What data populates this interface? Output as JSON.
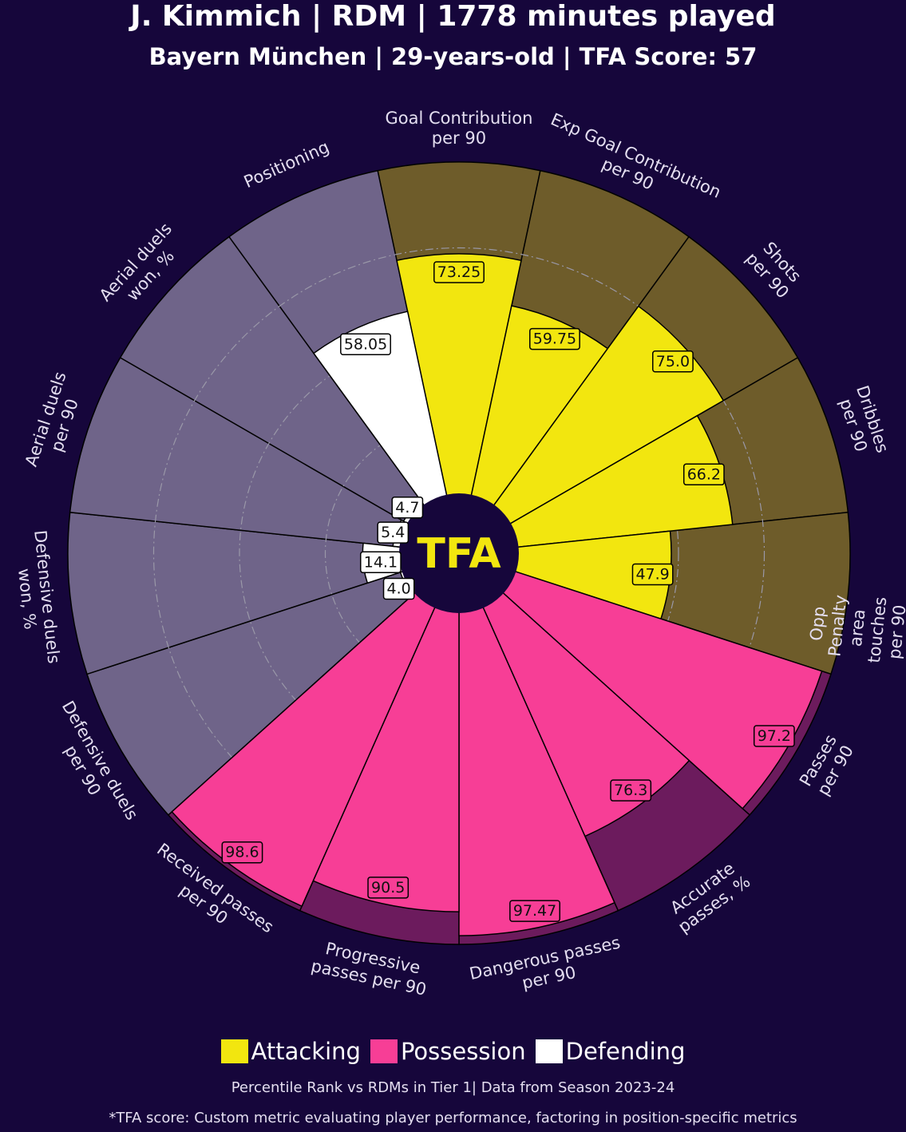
{
  "chart_data": {
    "type": "pizza",
    "title": "J. Kimmich | RDM | 1778 minutes played",
    "subtitle": "Bayern München | 29-years-old | TFA Score: 57",
    "center_label": "TFA",
    "categories": [
      "Goal Contribution\nper 90",
      "Exp Goal Contribution\nper 90",
      "Shots\nper 90",
      "Dribbles\nper 90",
      "Opp Penalty area\ntouches per 90",
      "Passes\nper 90",
      "Accurate\npasses, %",
      "Dangerous passes\nper 90",
      "Progressive\npasses per 90",
      "Received passes\nper 90",
      "Defensive duels\nper 90",
      "Defensive duels\nwon, %",
      "Aerial duels\nper 90",
      "Aerial duels\nwon, %",
      "Positioning"
    ],
    "series": [
      {
        "name": "Attacking",
        "color": "#f2e60f",
        "background": "#6e5c2a",
        "values": [
          73.25,
          59.75,
          75,
          66.2,
          47.9,
          null,
          null,
          null,
          null,
          null,
          null,
          null,
          null,
          null,
          null
        ],
        "value_labels": [
          "73.25",
          "59.75",
          "75.0",
          "66.2",
          "47.9",
          null,
          null,
          null,
          null,
          null,
          null,
          null,
          null,
          null,
          null
        ]
      },
      {
        "name": "Possession",
        "color": "#f73e96",
        "background": "#6c1b5d",
        "values": [
          null,
          null,
          null,
          null,
          null,
          97.2,
          76.3,
          97.47,
          90.5,
          98.6,
          null,
          null,
          null,
          null,
          null
        ],
        "value_labels": [
          null,
          null,
          null,
          null,
          null,
          "97.2",
          "76.3",
          "97.47",
          "90.5",
          "98.6",
          null,
          null,
          null,
          null,
          null
        ]
      },
      {
        "name": "Defending",
        "color": "#ffffff",
        "background": "#6f6489",
        "values": [
          null,
          null,
          null,
          null,
          null,
          null,
          null,
          null,
          null,
          null,
          4.0,
          14.1,
          5.4,
          4.7,
          58.05
        ],
        "value_labels": [
          null,
          null,
          null,
          null,
          null,
          null,
          null,
          null,
          null,
          null,
          "4.0",
          "14.1",
          "5.4",
          "4.7",
          "58.05"
        ]
      }
    ],
    "ylim": [
      0,
      100
    ],
    "grid": true,
    "notes": [
      "Percentile Rank vs RDMs in Tier 1| Data from Season 2023-24",
      "*TFA score: Custom metric evaluating player performance, factoring in position-specific metrics"
    ]
  }
}
